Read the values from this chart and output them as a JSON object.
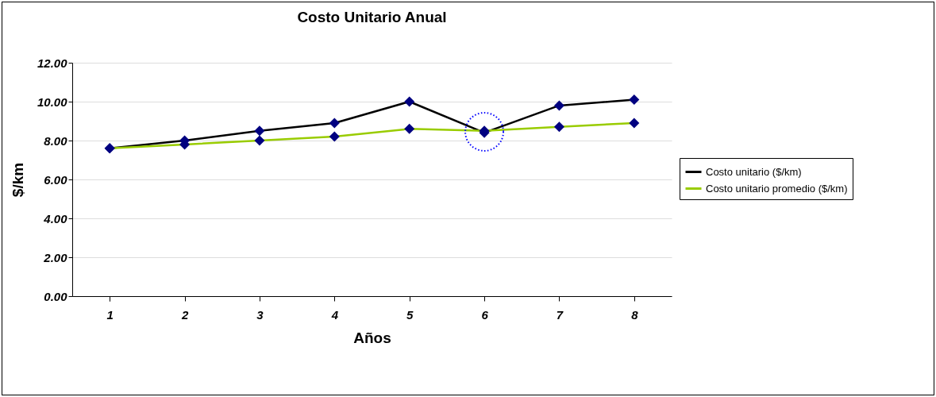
{
  "chart_data": {
    "type": "line",
    "title": "Costo Unitario Anual",
    "xlabel": "Años",
    "ylabel": "$/km",
    "categories": [
      "1",
      "2",
      "3",
      "4",
      "5",
      "6",
      "7",
      "8"
    ],
    "series": [
      {
        "name": "Costo unitario ($/km)",
        "color": "#000000",
        "values": [
          7.6,
          8.0,
          8.5,
          8.9,
          10.0,
          8.4,
          9.8,
          10.1
        ]
      },
      {
        "name": "Costo unitario promedio ($/km)",
        "color": "#99cc00",
        "values": [
          7.6,
          7.8,
          8.0,
          8.2,
          8.6,
          8.5,
          8.7,
          8.9
        ]
      }
    ],
    "ylim": [
      0,
      12
    ],
    "yticks": [
      {
        "value": 0,
        "label": "0.00"
      },
      {
        "value": 2,
        "label": "2.00"
      },
      {
        "value": 4,
        "label": "4.00"
      },
      {
        "value": 6,
        "label": "6.00"
      },
      {
        "value": 8,
        "label": "8.00"
      },
      {
        "value": 10,
        "label": "10.00"
      },
      {
        "value": 12,
        "label": "12.00"
      }
    ],
    "grid": "y",
    "legend": "right",
    "marker": "diamond",
    "line_style": "solid"
  }
}
